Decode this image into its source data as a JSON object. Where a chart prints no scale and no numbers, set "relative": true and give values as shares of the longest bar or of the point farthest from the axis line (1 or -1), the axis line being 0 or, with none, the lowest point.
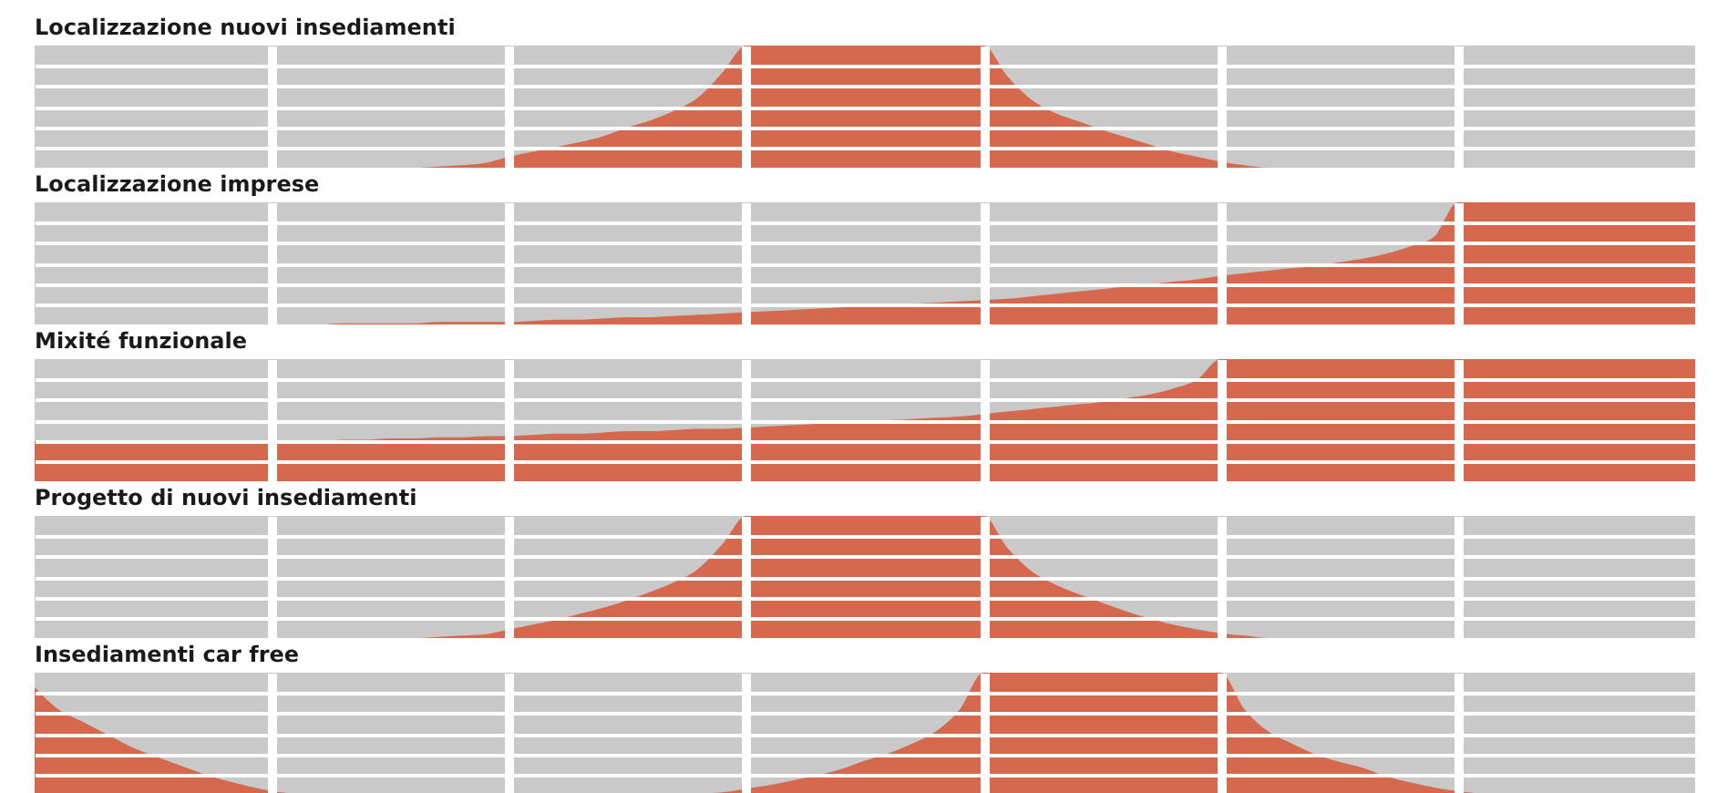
{
  "chart_data": [
    {
      "type": "area",
      "title": "Localizzazione nuovi insediamenti",
      "relative": true,
      "grid": true,
      "categories": [
        null,
        null,
        null,
        null,
        null,
        null,
        null,
        null,
        null,
        null,
        null,
        null,
        null,
        null,
        null,
        null,
        null,
        null,
        null,
        null,
        null,
        null,
        null,
        null,
        null,
        null,
        null,
        null,
        null,
        null,
        null,
        null,
        null,
        null,
        null,
        null,
        null,
        null,
        null,
        null,
        null,
        null,
        null,
        null,
        null,
        null,
        null,
        null,
        null,
        null,
        null,
        null,
        null,
        null,
        null,
        null,
        null,
        null,
        null,
        null,
        null,
        null,
        null,
        null,
        null,
        null,
        null,
        null,
        null,
        null,
        null
      ],
      "series": [
        {
          "color": "#d6694d",
          "values": [
            0,
            0,
            0,
            0,
            0,
            0,
            0,
            0,
            0,
            0,
            0,
            0,
            0,
            0,
            0,
            0,
            0,
            0.01,
            0.02,
            0.04,
            0.09,
            0.13,
            0.17,
            0.21,
            0.26,
            0.33,
            0.39,
            0.47,
            0.58,
            0.78,
            1,
            1,
            1,
            1,
            1,
            1,
            1,
            1,
            1,
            1,
            1,
            0.75,
            0.56,
            0.45,
            0.38,
            0.31,
            0.25,
            0.19,
            0.13,
            0.09,
            0.05,
            0.02,
            0,
            0,
            0,
            0,
            0,
            0,
            0,
            0,
            0,
            0,
            0,
            0,
            0,
            0,
            0,
            0,
            0,
            0,
            0
          ]
        }
      ]
    },
    {
      "type": "area",
      "title": "Localizzazione imprese",
      "relative": true,
      "grid": true,
      "categories": [
        null,
        null,
        null,
        null,
        null,
        null,
        null,
        null,
        null,
        null,
        null,
        null,
        null,
        null,
        null,
        null,
        null,
        null,
        null,
        null,
        null,
        null,
        null,
        null,
        null,
        null,
        null,
        null,
        null,
        null,
        null,
        null,
        null,
        null,
        null,
        null,
        null,
        null,
        null,
        null,
        null,
        null,
        null,
        null,
        null,
        null,
        null,
        null,
        null,
        null,
        null,
        null,
        null,
        null,
        null,
        null,
        null,
        null,
        null,
        null,
        null,
        null,
        null,
        null,
        null,
        null,
        null,
        null,
        null,
        null,
        null
      ],
      "series": [
        {
          "color": "#d6694d",
          "values": [
            0,
            0,
            0,
            0,
            0,
            0,
            0,
            0,
            0,
            0,
            0,
            0,
            0,
            0.01,
            0.01,
            0.01,
            0.01,
            0.02,
            0.02,
            0.02,
            0.02,
            0.03,
            0.04,
            0.04,
            0.05,
            0.06,
            0.06,
            0.07,
            0.08,
            0.09,
            0.1,
            0.11,
            0.12,
            0.13,
            0.14,
            0.15,
            0.16,
            0.17,
            0.18,
            0.19,
            0.2,
            0.21,
            0.23,
            0.25,
            0.27,
            0.29,
            0.31,
            0.33,
            0.35,
            0.37,
            0.4,
            0.42,
            0.44,
            0.46,
            0.48,
            0.51,
            0.54,
            0.58,
            0.64,
            0.72,
            1,
            1,
            1,
            1,
            1,
            1,
            1,
            1,
            1,
            1,
            1
          ]
        }
      ]
    },
    {
      "type": "area",
      "title": "Mixité funzionale",
      "relative": true,
      "grid": true,
      "categories": [
        null,
        null,
        null,
        null,
        null,
        null,
        null,
        null,
        null,
        null,
        null,
        null,
        null,
        null,
        null,
        null,
        null,
        null,
        null,
        null,
        null,
        null,
        null,
        null,
        null,
        null,
        null,
        null,
        null,
        null,
        null,
        null,
        null,
        null,
        null,
        null,
        null,
        null,
        null,
        null,
        null,
        null,
        null,
        null,
        null,
        null,
        null,
        null,
        null,
        null,
        null,
        null,
        null,
        null,
        null,
        null,
        null,
        null,
        null,
        null,
        null,
        null,
        null,
        null,
        null,
        null,
        null,
        null,
        null,
        null,
        null
      ],
      "series": [
        {
          "color": "#d6694d",
          "values": [
            0.33,
            0.33,
            0.33,
            0.33,
            0.33,
            0.33,
            0.33,
            0.33,
            0.33,
            0.33,
            0.33,
            0.33,
            0.33,
            0.34,
            0.34,
            0.35,
            0.35,
            0.36,
            0.36,
            0.37,
            0.37,
            0.38,
            0.39,
            0.39,
            0.4,
            0.41,
            0.41,
            0.42,
            0.43,
            0.43,
            0.44,
            0.45,
            0.46,
            0.47,
            0.48,
            0.49,
            0.5,
            0.51,
            0.52,
            0.53,
            0.55,
            0.57,
            0.59,
            0.61,
            0.63,
            0.65,
            0.68,
            0.71,
            0.76,
            0.83,
            1,
            1,
            1,
            1,
            1,
            1,
            1,
            1,
            1,
            1,
            1,
            1,
            1,
            1,
            1,
            1,
            1,
            1,
            1,
            1,
            1
          ]
        }
      ]
    },
    {
      "type": "area",
      "title": "Progetto di nuovi insediamenti",
      "relative": true,
      "grid": true,
      "categories": [
        null,
        null,
        null,
        null,
        null,
        null,
        null,
        null,
        null,
        null,
        null,
        null,
        null,
        null,
        null,
        null,
        null,
        null,
        null,
        null,
        null,
        null,
        null,
        null,
        null,
        null,
        null,
        null,
        null,
        null,
        null,
        null,
        null,
        null,
        null,
        null,
        null,
        null,
        null,
        null,
        null,
        null,
        null,
        null,
        null,
        null,
        null,
        null,
        null,
        null,
        null,
        null,
        null,
        null,
        null,
        null,
        null,
        null,
        null,
        null,
        null,
        null,
        null,
        null,
        null,
        null,
        null,
        null,
        null,
        null,
        null
      ],
      "series": [
        {
          "color": "#d6694d",
          "values": [
            0,
            0,
            0,
            0,
            0,
            0,
            0,
            0,
            0,
            0,
            0,
            0,
            0,
            0,
            0,
            0,
            0,
            0.01,
            0.02,
            0.03,
            0.07,
            0.11,
            0.15,
            0.2,
            0.25,
            0.31,
            0.38,
            0.46,
            0.57,
            0.77,
            1,
            1,
            1,
            1,
            1,
            1,
            1,
            1,
            1,
            1,
            1,
            0.74,
            0.55,
            0.44,
            0.36,
            0.29,
            0.22,
            0.16,
            0.11,
            0.07,
            0.04,
            0.02,
            0,
            0,
            0,
            0,
            0,
            0,
            0,
            0,
            0,
            0,
            0,
            0,
            0,
            0,
            0,
            0,
            0,
            0,
            0
          ]
        }
      ]
    },
    {
      "type": "area",
      "title": "Insediamenti car free",
      "relative": true,
      "grid": true,
      "categories": [
        null,
        null,
        null,
        null,
        null,
        null,
        null,
        null,
        null,
        null,
        null,
        null,
        null,
        null,
        null,
        null,
        null,
        null,
        null,
        null,
        null,
        null,
        null,
        null,
        null,
        null,
        null,
        null,
        null,
        null,
        null,
        null,
        null,
        null,
        null,
        null,
        null,
        null,
        null,
        null,
        null,
        null,
        null,
        null,
        null,
        null,
        null,
        null,
        null,
        null,
        null,
        null,
        null,
        null,
        null,
        null,
        null,
        null,
        null,
        null,
        null,
        null,
        null,
        null,
        null,
        null,
        null,
        null,
        null,
        null,
        null
      ],
      "series": [
        {
          "color": "#d6694d",
          "values": [
            0.88,
            0.7,
            0.6,
            0.5,
            0.4,
            0.32,
            0.25,
            0.18,
            0.12,
            0.07,
            0.03,
            0.01,
            0,
            0,
            0,
            0,
            0,
            0,
            0,
            0,
            0,
            0,
            0,
            0,
            0,
            0,
            0,
            0,
            0.01,
            0.02,
            0.05,
            0.08,
            0.12,
            0.16,
            0.21,
            0.28,
            0.34,
            0.42,
            0.52,
            0.7,
            1,
            1,
            1,
            1,
            1,
            1,
            1,
            1,
            1,
            1,
            1,
            0.7,
            0.52,
            0.42,
            0.33,
            0.27,
            0.22,
            0.15,
            0.1,
            0.06,
            0.03,
            0.01,
            0,
            0,
            0,
            0,
            0,
            0,
            0,
            0,
            0
          ]
        }
      ]
    }
  ]
}
